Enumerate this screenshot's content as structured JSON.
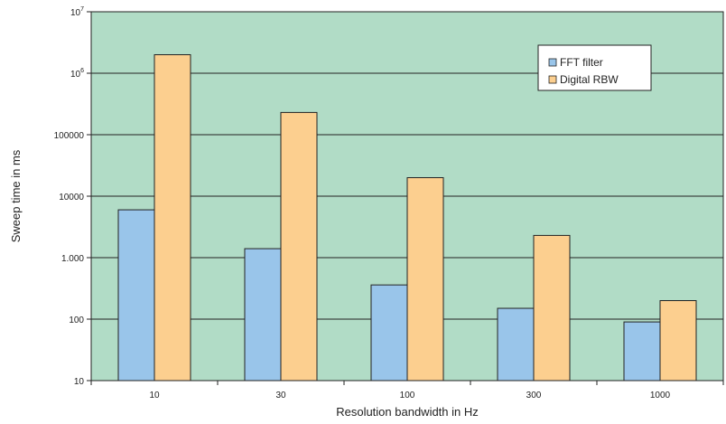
{
  "chart_data": {
    "type": "bar",
    "title": "",
    "xlabel": "Resolution bandwidth in Hz",
    "ylabel": "Sweep time in ms",
    "yscale": "log",
    "ylim": [
      10,
      10000000
    ],
    "grid": true,
    "legend_position": "top-right",
    "categories": [
      "10",
      "30",
      "100",
      "300",
      "1000"
    ],
    "y_tick_labels": [
      "10",
      "100",
      "1.000",
      "10000",
      "100000",
      "10^6",
      "10^7"
    ],
    "series": [
      {
        "name": "FFT filter",
        "color": "#99c5ea",
        "values": [
          6000,
          1400,
          360,
          150,
          90
        ]
      },
      {
        "name": "Digital RBW",
        "color": "#fccf8f",
        "values": [
          2000000,
          230000,
          20000,
          2300,
          200
        ]
      }
    ],
    "plot_background": "#b1dcc6"
  }
}
